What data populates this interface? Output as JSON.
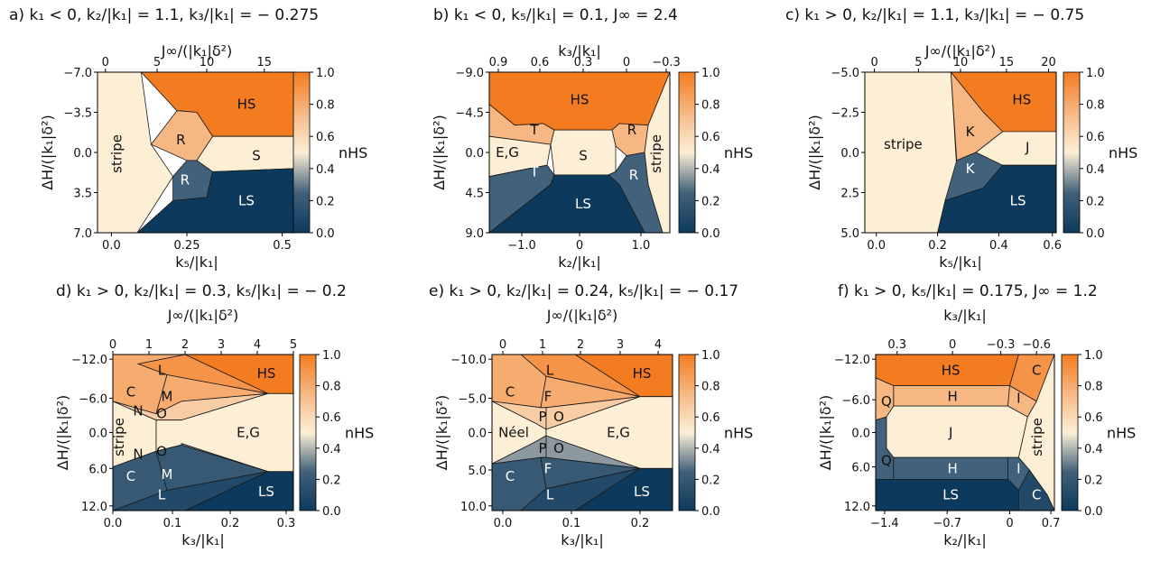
{
  "chart_data": [
    {
      "type": "phase-diagram",
      "panel_label": "a)",
      "title": "k₁ < 0, k₂/|k₁| = 1.1, k₃/|k₁| = − 0.275",
      "xlabel": "k₅/|k₁|",
      "ylabel": "ΔH/(|k₁|δ²)",
      "top_label": "J∞/(|k₁|δ²)",
      "x_ticks": [
        "0.0",
        "0.25",
        "0.5"
      ],
      "y_ticks": [
        "−7.0",
        "−3.5",
        "0.0",
        "3.5",
        "7.0"
      ],
      "top_ticks": [
        "0",
        "5",
        "10",
        "15"
      ],
      "colorbar_label": "nHS",
      "colorbar_ticks": [
        "1.0",
        "0.8",
        "0.6",
        "0.4",
        "0.2",
        "0.0"
      ],
      "regions": [
        {
          "label": "stripe",
          "n_hs": 0.5
        },
        {
          "label": "HS",
          "n_hs": 1.0
        },
        {
          "label": "R",
          "n_hs": 0.75
        },
        {
          "label": "S",
          "n_hs": 0.5
        },
        {
          "label": "R",
          "n_hs": 0.25
        },
        {
          "label": "LS",
          "n_hs": 0.0
        }
      ]
    },
    {
      "type": "phase-diagram",
      "panel_label": "b)",
      "title": "k₁ < 0, k₅/|k₁| = 0.1, J∞ = 2.4",
      "xlabel": "k₂/|k₁|",
      "ylabel": "ΔH/(|k₁|δ²)",
      "top_label": "k₃/|k₁|",
      "x_ticks": [
        "−1.0",
        "0",
        "1.0"
      ],
      "y_ticks": [
        "−9.0",
        "−4.5",
        "0.0",
        "4.5",
        "9.0"
      ],
      "top_ticks": [
        "0.9",
        "0.6",
        "0.3",
        "0",
        "−0.3"
      ],
      "colorbar_label": "nHS",
      "colorbar_ticks": [
        "1.0",
        "0.8",
        "0.6",
        "0.4",
        "0.2",
        "0.0"
      ],
      "regions": [
        {
          "label": "HS",
          "n_hs": 1.0
        },
        {
          "label": "T",
          "n_hs": 0.75
        },
        {
          "label": "R",
          "n_hs": 0.75
        },
        {
          "label": "E,G",
          "n_hs": 0.5
        },
        {
          "label": "S",
          "n_hs": 0.5
        },
        {
          "label": "stripe",
          "n_hs": 0.5
        },
        {
          "label": "T",
          "n_hs": 0.25
        },
        {
          "label": "R",
          "n_hs": 0.25
        },
        {
          "label": "LS",
          "n_hs": 0.0
        }
      ]
    },
    {
      "type": "phase-diagram",
      "panel_label": "c)",
      "title": "k₁ > 0, k₂/|k₁| = 1.1, k₃/|k₁| = − 0.75",
      "xlabel": "k₅/|k₁|",
      "ylabel": "ΔH/(|k₁|δ²)",
      "top_label": "J∞/(|k₁|δ²)",
      "x_ticks": [
        "0.0",
        "0.2",
        "0.4",
        "0.6"
      ],
      "y_ticks": [
        "−5.0",
        "−2.5",
        "0.0",
        "2.5",
        "5.0"
      ],
      "top_ticks": [
        "0",
        "5",
        "10",
        "15",
        "20"
      ],
      "colorbar_label": "nHS",
      "colorbar_ticks": [
        "1.0",
        "0.8",
        "0.6",
        "0.4",
        "0.2",
        "0.0"
      ],
      "regions": [
        {
          "label": "stripe",
          "n_hs": 0.5
        },
        {
          "label": "HS",
          "n_hs": 1.0
        },
        {
          "label": "K",
          "n_hs": 0.75
        },
        {
          "label": "J",
          "n_hs": 0.5
        },
        {
          "label": "K",
          "n_hs": 0.25
        },
        {
          "label": "LS",
          "n_hs": 0.0
        }
      ]
    },
    {
      "type": "phase-diagram",
      "panel_label": "d)",
      "title": "k₁ > 0, k₂/|k₁| = 0.3, k₅/|k₁| = − 0.2",
      "xlabel": "k₃/|k₁|",
      "ylabel": "ΔH/(|k₁|δ²)",
      "top_label": "J∞/(|k₁|δ²)",
      "x_ticks": [
        "0.0",
        "0.1",
        "0.2",
        "0.3"
      ],
      "y_ticks": [
        "−12.0",
        "−6.0",
        "0.0",
        "6.0",
        "12.0"
      ],
      "top_ticks": [
        "0",
        "1",
        "2",
        "3",
        "4",
        "5"
      ],
      "colorbar_label": "nHS",
      "colorbar_ticks": [
        "1.0",
        "0.8",
        "0.6",
        "0.4",
        "0.2",
        "0.0"
      ],
      "regions": [
        {
          "label": "HS",
          "n_hs": 1.0
        },
        {
          "label": "L",
          "n_hs": 0.9
        },
        {
          "label": "C",
          "n_hs": 0.8
        },
        {
          "label": "M",
          "n_hs": 0.8
        },
        {
          "label": "N",
          "n_hs": 0.65
        },
        {
          "label": "O",
          "n_hs": 0.65
        },
        {
          "label": "stripe",
          "n_hs": 0.5
        },
        {
          "label": "E,G",
          "n_hs": 0.5
        },
        {
          "label": "N",
          "n_hs": 0.35
        },
        {
          "label": "O",
          "n_hs": 0.35
        },
        {
          "label": "C",
          "n_hs": 0.2
        },
        {
          "label": "M",
          "n_hs": 0.2
        },
        {
          "label": "L",
          "n_hs": 0.1
        },
        {
          "label": "LS",
          "n_hs": 0.0
        }
      ]
    },
    {
      "type": "phase-diagram",
      "panel_label": "e)",
      "title": "k₁ > 0, k₂/|k₁| = 0.24, k₅/|k₁| = − 0.17",
      "xlabel": "k₃/|k₁|",
      "ylabel": "ΔH/(|k₁|δ²)",
      "top_label": "J∞/(|k₁|δ²)",
      "x_ticks": [
        "0.0",
        "0.1",
        "0.2"
      ],
      "y_ticks": [
        "−10.0",
        "−5.0",
        "0.0",
        "5.0",
        "10.0"
      ],
      "top_ticks": [
        "0",
        "1",
        "2",
        "3",
        "4"
      ],
      "colorbar_label": "nHS",
      "colorbar_ticks": [
        "1.0",
        "0.8",
        "0.6",
        "0.4",
        "0.2",
        "0.0"
      ],
      "regions": [
        {
          "label": "HS",
          "n_hs": 1.0
        },
        {
          "label": "L",
          "n_hs": 0.9
        },
        {
          "label": "C",
          "n_hs": 0.8
        },
        {
          "label": "F",
          "n_hs": 0.8
        },
        {
          "label": "P",
          "n_hs": 0.65
        },
        {
          "label": "O",
          "n_hs": 0.65
        },
        {
          "label": "Néel",
          "n_hs": 0.5
        },
        {
          "label": "E,G",
          "n_hs": 0.5
        },
        {
          "label": "P",
          "n_hs": 0.35
        },
        {
          "label": "O",
          "n_hs": 0.35
        },
        {
          "label": "C",
          "n_hs": 0.2
        },
        {
          "label": "F",
          "n_hs": 0.2
        },
        {
          "label": "L",
          "n_hs": 0.1
        },
        {
          "label": "LS",
          "n_hs": 0.0
        }
      ]
    },
    {
      "type": "phase-diagram",
      "panel_label": "f)",
      "title": "k₁ > 0, k₅/|k₁| = 0.175, J∞ = 1.2",
      "xlabel": "k₂/|k₁|",
      "ylabel": "ΔH/(|k₁|δ²)",
      "top_label": "k₃/|k₁|",
      "x_ticks": [
        "−1.4",
        "−0.7",
        "0",
        "0.7"
      ],
      "y_ticks": [
        "−12.0",
        "−6.0",
        "0.0",
        "6.0",
        "12.0"
      ],
      "top_ticks": [
        "0.3",
        "0",
        "−0.3",
        "−0.6"
      ],
      "colorbar_label": "nHS",
      "colorbar_ticks": [
        "1.0",
        "0.8",
        "0.6",
        "0.4",
        "0.2",
        "0.0"
      ],
      "regions": [
        {
          "label": "HS",
          "n_hs": 1.0
        },
        {
          "label": "C",
          "n_hs": 0.9
        },
        {
          "label": "H",
          "n_hs": 0.75
        },
        {
          "label": "I",
          "n_hs": 0.75
        },
        {
          "label": "Q",
          "n_hs": 0.75
        },
        {
          "label": "J",
          "n_hs": 0.5
        },
        {
          "label": "stripe",
          "n_hs": 0.5
        },
        {
          "label": "Q",
          "n_hs": 0.25
        },
        {
          "label": "H",
          "n_hs": 0.25
        },
        {
          "label": "I",
          "n_hs": 0.25
        },
        {
          "label": "LS",
          "n_hs": 0.0
        },
        {
          "label": "C",
          "n_hs": 0.1
        }
      ]
    }
  ]
}
